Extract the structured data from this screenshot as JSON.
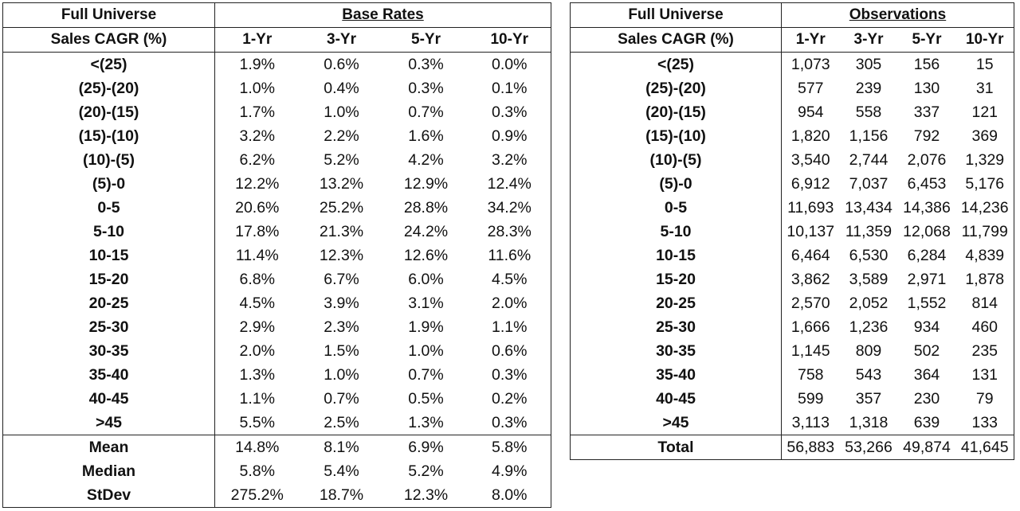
{
  "base_rates_table": {
    "corner_top": "Full Universe",
    "corner_sub": "Sales CAGR (%)",
    "group_title": "Base Rates",
    "columns": [
      "1-Yr",
      "3-Yr",
      "5-Yr",
      "10-Yr"
    ],
    "rows": [
      {
        "label": "<(25)",
        "values": [
          "1.9%",
          "0.6%",
          "0.3%",
          "0.0%"
        ]
      },
      {
        "label": "(25)-(20)",
        "values": [
          "1.0%",
          "0.4%",
          "0.3%",
          "0.1%"
        ]
      },
      {
        "label": "(20)-(15)",
        "values": [
          "1.7%",
          "1.0%",
          "0.7%",
          "0.3%"
        ]
      },
      {
        "label": "(15)-(10)",
        "values": [
          "3.2%",
          "2.2%",
          "1.6%",
          "0.9%"
        ]
      },
      {
        "label": "(10)-(5)",
        "values": [
          "6.2%",
          "5.2%",
          "4.2%",
          "3.2%"
        ]
      },
      {
        "label": "(5)-0",
        "values": [
          "12.2%",
          "13.2%",
          "12.9%",
          "12.4%"
        ]
      },
      {
        "label": "0-5",
        "values": [
          "20.6%",
          "25.2%",
          "28.8%",
          "34.2%"
        ]
      },
      {
        "label": "5-10",
        "values": [
          "17.8%",
          "21.3%",
          "24.2%",
          "28.3%"
        ]
      },
      {
        "label": "10-15",
        "values": [
          "11.4%",
          "12.3%",
          "12.6%",
          "11.6%"
        ]
      },
      {
        "label": "15-20",
        "values": [
          "6.8%",
          "6.7%",
          "6.0%",
          "4.5%"
        ]
      },
      {
        "label": "20-25",
        "values": [
          "4.5%",
          "3.9%",
          "3.1%",
          "2.0%"
        ]
      },
      {
        "label": "25-30",
        "values": [
          "2.9%",
          "2.3%",
          "1.9%",
          "1.1%"
        ]
      },
      {
        "label": "30-35",
        "values": [
          "2.0%",
          "1.5%",
          "1.0%",
          "0.6%"
        ]
      },
      {
        "label": "35-40",
        "values": [
          "1.3%",
          "1.0%",
          "0.7%",
          "0.3%"
        ]
      },
      {
        "label": "40-45",
        "values": [
          "1.1%",
          "0.7%",
          "0.5%",
          "0.2%"
        ]
      },
      {
        "label": ">45",
        "values": [
          "5.5%",
          "2.5%",
          "1.3%",
          "0.3%"
        ]
      }
    ],
    "summary": [
      {
        "label": "Mean",
        "values": [
          "14.8%",
          "8.1%",
          "6.9%",
          "5.8%"
        ]
      },
      {
        "label": "Median",
        "values": [
          "5.8%",
          "5.4%",
          "5.2%",
          "4.9%"
        ]
      },
      {
        "label": "StDev",
        "values": [
          "275.2%",
          "18.7%",
          "12.3%",
          "8.0%"
        ]
      }
    ]
  },
  "observations_table": {
    "corner_top": "Full Universe",
    "corner_sub": "Sales CAGR (%)",
    "group_title": "Observations",
    "columns": [
      "1-Yr",
      "3-Yr",
      "5-Yr",
      "10-Yr"
    ],
    "rows": [
      {
        "label": "<(25)",
        "values": [
          "1,073",
          "305",
          "156",
          "15"
        ]
      },
      {
        "label": "(25)-(20)",
        "values": [
          "577",
          "239",
          "130",
          "31"
        ]
      },
      {
        "label": "(20)-(15)",
        "values": [
          "954",
          "558",
          "337",
          "121"
        ]
      },
      {
        "label": "(15)-(10)",
        "values": [
          "1,820",
          "1,156",
          "792",
          "369"
        ]
      },
      {
        "label": "(10)-(5)",
        "values": [
          "3,540",
          "2,744",
          "2,076",
          "1,329"
        ]
      },
      {
        "label": "(5)-0",
        "values": [
          "6,912",
          "7,037",
          "6,453",
          "5,176"
        ]
      },
      {
        "label": "0-5",
        "values": [
          "11,693",
          "13,434",
          "14,386",
          "14,236"
        ]
      },
      {
        "label": "5-10",
        "values": [
          "10,137",
          "11,359",
          "12,068",
          "11,799"
        ]
      },
      {
        "label": "10-15",
        "values": [
          "6,464",
          "6,530",
          "6,284",
          "4,839"
        ]
      },
      {
        "label": "15-20",
        "values": [
          "3,862",
          "3,589",
          "2,971",
          "1,878"
        ]
      },
      {
        "label": "20-25",
        "values": [
          "2,570",
          "2,052",
          "1,552",
          "814"
        ]
      },
      {
        "label": "25-30",
        "values": [
          "1,666",
          "1,236",
          "934",
          "460"
        ]
      },
      {
        "label": "30-35",
        "values": [
          "1,145",
          "809",
          "502",
          "235"
        ]
      },
      {
        "label": "35-40",
        "values": [
          "758",
          "543",
          "364",
          "131"
        ]
      },
      {
        "label": "40-45",
        "values": [
          "599",
          "357",
          "230",
          "79"
        ]
      },
      {
        "label": ">45",
        "values": [
          "3,113",
          "1,318",
          "639",
          "133"
        ]
      }
    ],
    "summary": [
      {
        "label": "Total",
        "values": [
          "56,883",
          "53,266",
          "49,874",
          "41,645"
        ]
      }
    ]
  }
}
